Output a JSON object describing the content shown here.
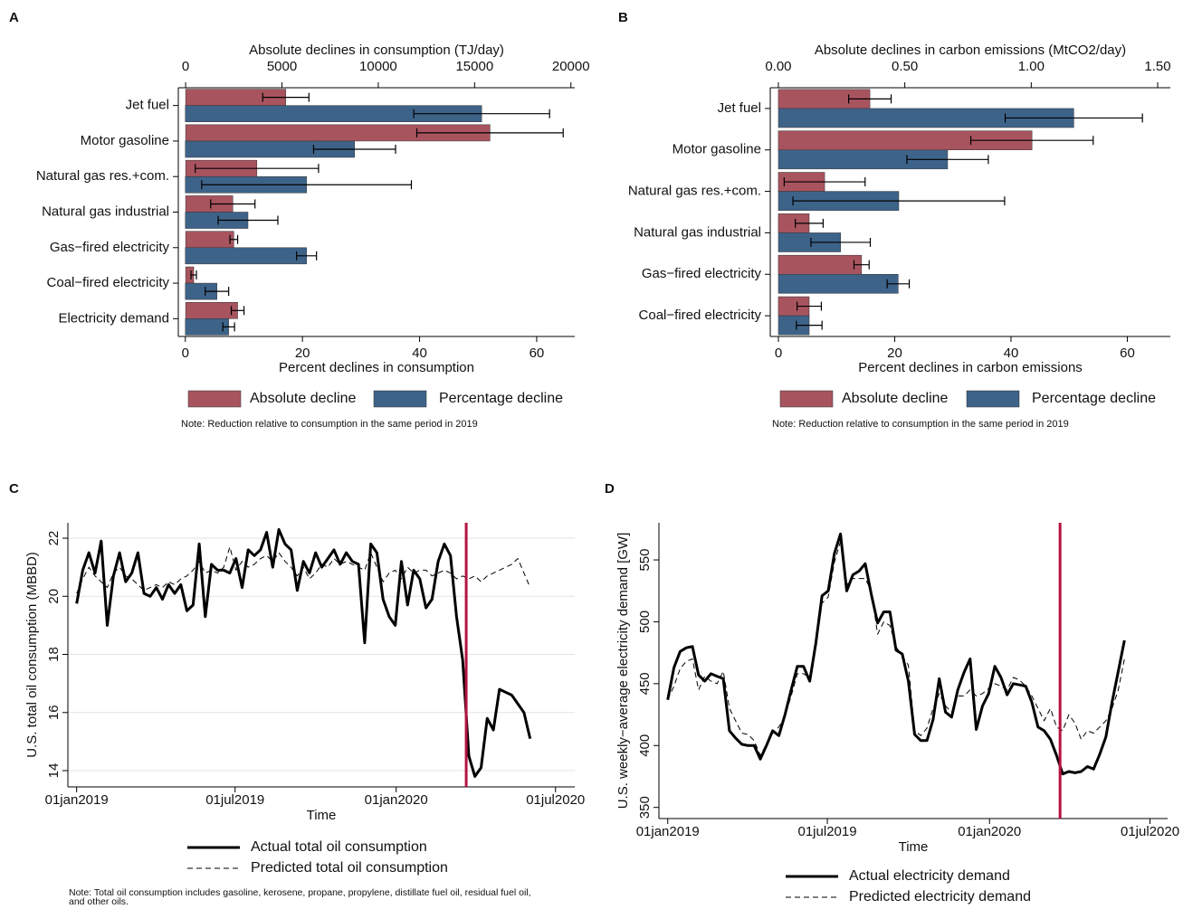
{
  "chart_data": [
    {
      "type": "bar",
      "orientation": "horizontal",
      "panel_label": "A",
      "categories": [
        "Jet fuel",
        "Motor gasoline",
        "Natural gas res.+com.",
        "Natural gas industrial",
        "Gas−fired electricity",
        "Coal−fired electricity",
        "Electricity demand"
      ],
      "series": [
        {
          "name": "Absolute decline",
          "color": "#a8545f",
          "axis": "x2",
          "values": [
            5200,
            15800,
            3700,
            2450,
            2500,
            420,
            2700
          ],
          "errors": [
            1200,
            3800,
            3200,
            1150,
            200,
            140,
            330
          ]
        },
        {
          "name": "Percentage decline",
          "color": "#3e6389",
          "values": [
            50.6,
            28.9,
            20.7,
            10.7,
            20.7,
            5.4,
            7.4
          ],
          "errors": [
            11.6,
            7.0,
            17.9,
            5.1,
            1.7,
            2.0,
            1.0
          ]
        }
      ],
      "xlabel": "Percent declines in consumption",
      "xlim": [
        -1.2,
        66.5
      ],
      "xticks": [
        0,
        20,
        40,
        60
      ],
      "x2label": "Absolute declines in consumption (TJ/day)",
      "x2lim": [
        -380,
        20200
      ],
      "x2ticks": [
        0,
        5000,
        10000,
        15000,
        20000
      ],
      "note": "Note: Reduction relative to consumption in the same period in 2019"
    },
    {
      "type": "bar",
      "orientation": "horizontal",
      "panel_label": "B",
      "categories": [
        "Jet fuel",
        "Motor gasoline",
        "Natural gas res.+com.",
        "Natural gas industrial",
        "Gas−fired electricity",
        "Coal−fired electricity"
      ],
      "series": [
        {
          "name": "Absolute decline",
          "color": "#a8545f",
          "axis": "x2",
          "values": [
            0.362,
            1.003,
            0.183,
            0.122,
            0.329,
            0.122
          ],
          "errors": [
            0.084,
            0.242,
            0.16,
            0.055,
            0.03,
            0.048
          ]
        },
        {
          "name": "Percentage decline",
          "color": "#3e6389",
          "values": [
            50.8,
            29.1,
            20.7,
            10.7,
            20.6,
            5.3
          ],
          "errors": [
            11.8,
            7.0,
            18.2,
            5.1,
            1.9,
            2.2
          ]
        }
      ],
      "xlabel": "Percent declines in carbon emissions",
      "xlim": [
        -1.4,
        67.4
      ],
      "xticks": [
        0,
        20,
        40,
        60
      ],
      "x2label": "Absolute declines in carbon emissions (MtCO2/day)",
      "x2lim": [
        -0.032,
        1.55
      ],
      "x2ticks": [
        {
          "value": 0,
          "label": "0.00"
        },
        {
          "value": 0.5,
          "label": "0.50"
        },
        {
          "value": 1,
          "label": "1.00"
        },
        {
          "value": 1.5,
          "label": "1.50"
        }
      ],
      "note": "Note: Reduction relative to consumption in the same period in 2019"
    },
    {
      "type": "line",
      "panel_label": "C",
      "x": [
        0,
        7,
        14,
        21,
        28,
        35,
        42,
        49,
        56,
        63,
        70,
        77,
        84,
        91,
        98,
        105,
        112,
        119,
        126,
        133,
        140,
        147,
        154,
        161,
        168,
        175,
        182,
        189,
        196,
        203,
        210,
        217,
        224,
        231,
        238,
        245,
        252,
        259,
        266,
        273,
        280,
        287,
        294,
        301,
        308,
        315,
        322,
        329,
        336,
        343,
        350,
        357,
        364,
        371,
        378,
        385,
        392,
        399,
        406,
        413,
        420,
        427,
        434,
        441,
        448,
        455,
        462,
        469,
        476,
        483,
        490,
        497,
        504,
        511,
        518
      ],
      "series": [
        {
          "name": "Actual total oil consumption",
          "color": "#000000",
          "width": 3,
          "dash": "solid",
          "values": [
            19.75,
            20.9,
            21.5,
            20.8,
            21.9,
            19.0,
            20.7,
            21.5,
            20.5,
            20.8,
            21.5,
            20.1,
            20.0,
            20.3,
            19.9,
            20.4,
            20.1,
            20.4,
            19.5,
            19.7,
            21.8,
            19.3,
            21.1,
            20.9,
            20.9,
            20.8,
            21.3,
            20.3,
            21.6,
            21.4,
            21.6,
            22.2,
            21.0,
            22.3,
            21.8,
            21.6,
            20.2,
            21.2,
            20.8,
            21.5,
            21.0,
            21.3,
            21.6,
            21.1,
            21.5,
            21.2,
            21.1,
            18.4,
            21.8,
            21.5,
            19.9,
            19.3,
            19.0,
            21.2,
            19.7,
            20.9,
            20.6,
            19.6,
            19.9,
            21.2,
            21.8,
            21.4,
            19.3,
            17.8,
            14.5,
            13.8,
            14.1,
            15.8,
            15.4,
            16.8,
            16.7,
            16.6,
            16.3,
            16.0,
            15.1
          ]
        },
        {
          "name": "Predicted total oil consumption",
          "color": "#000000",
          "width": 1,
          "dash": "dashed",
          "values": [
            20.1,
            20.6,
            21.0,
            20.7,
            20.5,
            20.3,
            20.8,
            21.0,
            20.7,
            20.6,
            20.4,
            20.2,
            20.3,
            20.4,
            20.3,
            20.5,
            20.4,
            20.6,
            20.7,
            20.9,
            21.2,
            20.8,
            20.9,
            20.8,
            21.0,
            21.7,
            20.9,
            21.2,
            21.0,
            21.1,
            21.3,
            21.4,
            21.2,
            21.5,
            21.2,
            21.0,
            20.7,
            21.0,
            20.6,
            20.8,
            21.1,
            21.0,
            21.3,
            21.1,
            21.2,
            21.1,
            21.0,
            20.9,
            21.5,
            21.0,
            20.5,
            20.8,
            20.9,
            20.6,
            21.0,
            20.8,
            20.9,
            20.9,
            20.7,
            20.8,
            20.9,
            20.8,
            20.6,
            20.7,
            20.6,
            20.7,
            20.5,
            20.7,
            20.8,
            20.9,
            21.0,
            21.1,
            21.3,
            20.8,
            20.3
          ]
        }
      ],
      "xlabel": "Time",
      "xlim": [
        -10,
        569
      ],
      "xticks": [
        {
          "value": 0,
          "label": "01jan2019"
        },
        {
          "value": 181,
          "label": "01jul2019"
        },
        {
          "value": 365,
          "label": "01jan2020"
        },
        {
          "value": 547,
          "label": "01jul2020"
        }
      ],
      "ylabel": "U.S. total oil consumption (MBBD)",
      "ylim": [
        13.44,
        22.53
      ],
      "yticks": [
        14,
        16,
        18,
        20,
        22
      ],
      "grid": true,
      "vline": {
        "x": 445,
        "color": "#b5123f"
      },
      "note": "Note: Total oil consumption includes gasoline, kerosene, propane, propylene, distillate fuel oil, residual fuel oil, and other oils."
    },
    {
      "type": "line",
      "panel_label": "D",
      "x": [
        0,
        7,
        14,
        21,
        28,
        35,
        42,
        49,
        56,
        63,
        70,
        77,
        84,
        91,
        98,
        105,
        112,
        119,
        126,
        133,
        140,
        147,
        154,
        161,
        168,
        175,
        182,
        189,
        196,
        203,
        210,
        217,
        224,
        231,
        238,
        245,
        252,
        259,
        266,
        273,
        280,
        287,
        294,
        301,
        308,
        315,
        322,
        329,
        336,
        343,
        350,
        357,
        364,
        371,
        378,
        385,
        392,
        399,
        406,
        413,
        420,
        427,
        434,
        441,
        448,
        455,
        462,
        469,
        476,
        483,
        490,
        497,
        504,
        511,
        518
      ],
      "series": [
        {
          "name": "Actual electricity demand",
          "color": "#000000",
          "width": 3,
          "dash": "solid",
          "values": [
            437,
            463,
            476,
            479,
            480,
            457,
            452,
            458,
            456,
            454,
            412,
            406,
            401,
            400,
            400,
            389,
            400,
            412,
            408,
            425,
            445,
            464,
            464,
            452,
            483,
            521,
            525,
            555,
            571,
            525,
            538,
            541,
            547,
            522,
            499,
            508,
            508,
            477,
            474,
            452,
            409,
            404,
            404,
            421,
            454,
            427,
            423,
            445,
            459,
            470,
            413,
            432,
            442,
            464,
            455,
            441,
            450,
            449,
            448,
            435,
            415,
            412,
            405,
            392,
            377,
            379,
            378,
            379,
            383,
            381,
            393,
            407,
            435,
            460,
            485
          ]
        },
        {
          "name": "Predicted electricity demand",
          "color": "#000000",
          "width": 1,
          "dash": "dashed",
          "values": [
            437,
            448,
            462,
            468,
            470,
            445,
            456,
            452,
            450,
            460,
            430,
            420,
            410,
            409,
            404,
            392,
            401,
            410,
            415,
            424,
            440,
            458,
            458,
            455,
            480,
            515,
            520,
            548,
            565,
            530,
            535,
            535,
            535,
            525,
            490,
            500,
            497,
            480,
            472,
            465,
            412,
            408,
            414,
            430,
            442,
            432,
            427,
            440,
            440,
            445,
            440,
            442,
            446,
            450,
            448,
            445,
            455,
            453,
            448,
            440,
            430,
            420,
            430,
            415,
            412,
            425,
            418,
            405,
            412,
            410,
            415,
            420,
            430,
            445,
            470
          ]
        }
      ],
      "xlabel": "Time",
      "xlim": [
        -10,
        567
      ],
      "xticks": [
        {
          "value": 0,
          "label": "01jan2019"
        },
        {
          "value": 181,
          "label": "01jul2019"
        },
        {
          "value": 365,
          "label": "01jan2020"
        },
        {
          "value": 547,
          "label": "01jul2020"
        }
      ],
      "ylabel": "U.S. weekly−average electricity demand [GW]",
      "ylim": [
        341,
        580
      ],
      "yticks": [
        350,
        400,
        450,
        500,
        550
      ],
      "grid": false,
      "vline": {
        "x": 445,
        "color": "#b5123f"
      }
    }
  ]
}
